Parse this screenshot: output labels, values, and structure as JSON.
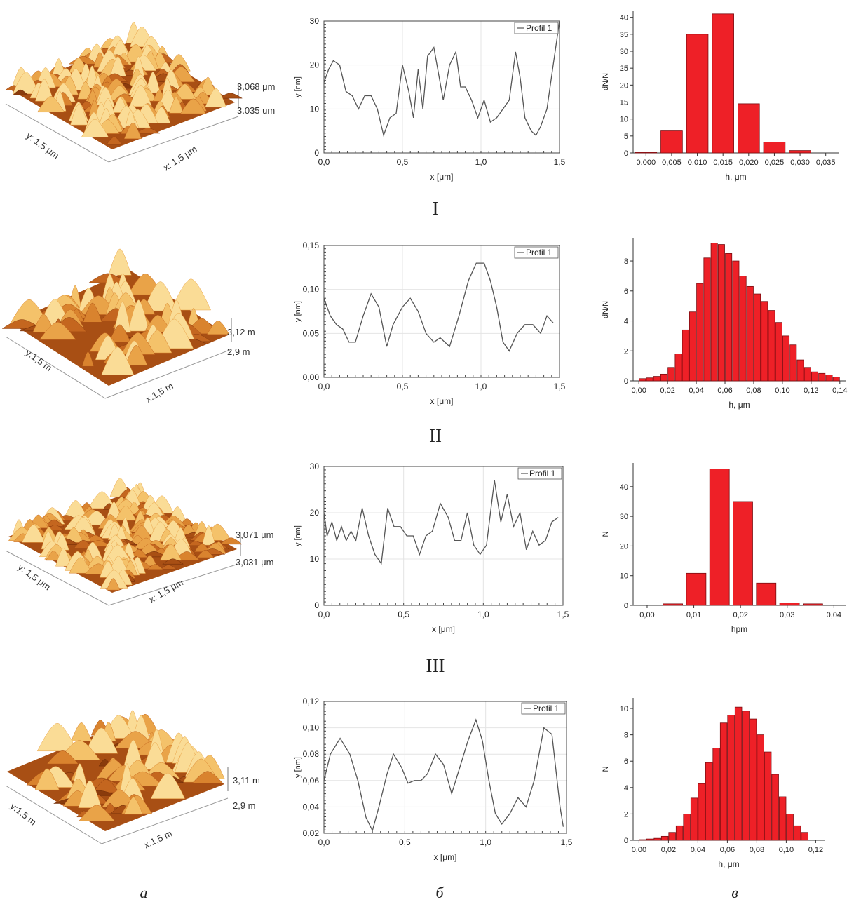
{
  "row_labels": [
    "I",
    "II",
    "III"
  ],
  "column_labels": [
    "а",
    "б",
    "в"
  ],
  "surfaces": [
    {
      "x_label": "x: 1,5 μm",
      "y_label": "y: 1,5 μm",
      "z_top": "3,068 μm",
      "z_bottom": "3.035 um"
    },
    {
      "x_label": "x:1,5 m",
      "y_label": "y:1,5 m",
      "z_top": "3,12 m",
      "z_bottom": "2,9 m"
    },
    {
      "x_label": "x: 1,5 μm",
      "y_label": "y: 1,5 μm",
      "z_top": "3,071 μm",
      "z_bottom": "3,031 μm"
    },
    {
      "x_label": "x:1,5 m",
      "y_label": "y:1,5 m",
      "z_top": "3,11 m",
      "z_bottom": "2,9 m"
    }
  ],
  "colors": {
    "bar_fill": "#ee2027",
    "bar_stroke": "#7a0c10",
    "line": "#555555",
    "grid": "#e4e4e4"
  },
  "chart_data": [
    {
      "type": "line",
      "legend": "Profil 1",
      "xlabel": "x [μm]",
      "ylabel": "y [nm]",
      "xlim": [
        0,
        1.5
      ],
      "ylim": [
        0,
        30
      ],
      "x_ticks": [
        0,
        0.5,
        1.0,
        1.5
      ],
      "x_tick_labels": [
        "0,0",
        "0,5",
        "1,0",
        "1,5"
      ],
      "y_ticks": [
        0,
        10,
        20,
        30
      ],
      "y_tick_labels": [
        "0",
        "10",
        "20",
        "30"
      ],
      "x": [
        0,
        0.03,
        0.06,
        0.1,
        0.14,
        0.18,
        0.22,
        0.26,
        0.3,
        0.34,
        0.38,
        0.42,
        0.46,
        0.5,
        0.54,
        0.57,
        0.6,
        0.63,
        0.66,
        0.7,
        0.73,
        0.76,
        0.8,
        0.84,
        0.87,
        0.9,
        0.94,
        0.98,
        1.02,
        1.06,
        1.1,
        1.14,
        1.18,
        1.22,
        1.25,
        1.28,
        1.32,
        1.35,
        1.38,
        1.42,
        1.46,
        1.5
      ],
      "y": [
        16,
        19,
        21,
        20,
        14,
        13,
        10,
        13,
        13,
        10,
        4,
        8,
        9,
        20,
        14,
        8,
        19,
        10,
        22,
        24,
        18,
        12,
        20,
        23,
        15,
        15,
        12,
        8,
        12,
        7,
        8,
        10,
        12,
        23,
        17,
        8,
        5,
        4,
        6,
        10,
        20,
        30
      ]
    },
    {
      "type": "bar",
      "xlabel": "h, μm",
      "ylabel": "dN/N",
      "xlim": [
        -0.0025,
        0.0375
      ],
      "ylim": [
        0,
        42
      ],
      "bar_width": 0.0042,
      "x_ticks": [
        0,
        0.005,
        0.01,
        0.015,
        0.02,
        0.025,
        0.03,
        0.035
      ],
      "x_tick_labels": [
        "0,000",
        "0,005",
        "0,010",
        "0,015",
        "0,020",
        "0,025",
        "0,030",
        "0,035"
      ],
      "y_ticks": [
        0,
        5,
        10,
        15,
        20,
        25,
        30,
        35,
        40
      ],
      "y_tick_labels": [
        "0",
        "5",
        "10",
        "15",
        "20",
        "25",
        "30",
        "35",
        "40"
      ],
      "x": [
        0,
        0.005,
        0.01,
        0.015,
        0.02,
        0.025,
        0.03
      ],
      "values": [
        0.2,
        6.5,
        35,
        41,
        14.5,
        3.2,
        0.7
      ]
    },
    {
      "type": "line",
      "legend": "Profil 1",
      "xlabel": "x [μm]",
      "ylabel": "y [nm]",
      "xlim": [
        0,
        1.5
      ],
      "ylim": [
        0,
        0.15
      ],
      "x_ticks": [
        0,
        0.5,
        1.0,
        1.5
      ],
      "x_tick_labels": [
        "0,0",
        "0,5",
        "1,0",
        "1,5"
      ],
      "y_ticks": [
        0,
        0.05,
        0.1,
        0.15
      ],
      "y_tick_labels": [
        "0,00",
        "0,05",
        "0,10",
        "0,15"
      ],
      "x": [
        0,
        0.04,
        0.08,
        0.12,
        0.16,
        0.2,
        0.25,
        0.3,
        0.35,
        0.4,
        0.44,
        0.5,
        0.55,
        0.6,
        0.65,
        0.7,
        0.74,
        0.8,
        0.86,
        0.92,
        0.97,
        1.02,
        1.06,
        1.1,
        1.14,
        1.18,
        1.23,
        1.28,
        1.33,
        1.38,
        1.42,
        1.46
      ],
      "y": [
        0.09,
        0.07,
        0.06,
        0.055,
        0.04,
        0.04,
        0.07,
        0.095,
        0.08,
        0.035,
        0.06,
        0.08,
        0.09,
        0.075,
        0.05,
        0.04,
        0.045,
        0.035,
        0.07,
        0.11,
        0.13,
        0.13,
        0.11,
        0.08,
        0.04,
        0.03,
        0.05,
        0.06,
        0.06,
        0.05,
        0.07,
        0.062
      ]
    },
    {
      "type": "bar",
      "xlabel": "h, μm",
      "ylabel": "dN/N",
      "xlim": [
        -0.004,
        0.144
      ],
      "ylim": [
        0,
        9.5
      ],
      "bar_width": 0.0045,
      "x_ticks": [
        0,
        0.02,
        0.04,
        0.06,
        0.08,
        0.1,
        0.12,
        0.14
      ],
      "x_tick_labels": [
        "0,00",
        "0,02",
        "0,04",
        "0,06",
        "0,08",
        "0,10",
        "0,12",
        "0,14"
      ],
      "y_ticks": [
        0,
        2,
        4,
        6,
        8
      ],
      "y_tick_labels": [
        "0",
        "2",
        "4",
        "6",
        "8"
      ],
      "x": [
        0.0025,
        0.0075,
        0.0125,
        0.0175,
        0.0225,
        0.0275,
        0.0325,
        0.0375,
        0.0425,
        0.0475,
        0.0525,
        0.0575,
        0.0625,
        0.0675,
        0.0725,
        0.0775,
        0.0825,
        0.0875,
        0.0925,
        0.0975,
        0.1025,
        0.1075,
        0.1125,
        0.1175,
        0.1225,
        0.1275,
        0.1325,
        0.1375
      ],
      "values": [
        0.15,
        0.2,
        0.3,
        0.45,
        0.9,
        1.8,
        3.4,
        4.6,
        6.5,
        8.2,
        9.2,
        9.1,
        8.5,
        8.0,
        7.0,
        6.3,
        5.8,
        5.3,
        4.7,
        3.9,
        3.0,
        2.4,
        1.4,
        0.9,
        0.6,
        0.5,
        0.4,
        0.25
      ]
    },
    {
      "type": "line",
      "legend": "Profil 1",
      "xlabel": "x [μm]",
      "ylabel": "y [nm]",
      "xlim": [
        0,
        1.5
      ],
      "ylim": [
        0,
        30
      ],
      "x_ticks": [
        0,
        0.5,
        1.0,
        1.5
      ],
      "x_tick_labels": [
        "0,0",
        "0,5",
        "1,0",
        "1,5"
      ],
      "y_ticks": [
        0,
        10,
        20,
        30
      ],
      "y_tick_labels": [
        "0",
        "10",
        "20",
        "30"
      ],
      "x": [
        0,
        0.02,
        0.05,
        0.08,
        0.11,
        0.14,
        0.17,
        0.2,
        0.24,
        0.28,
        0.32,
        0.36,
        0.4,
        0.44,
        0.48,
        0.52,
        0.56,
        0.6,
        0.64,
        0.68,
        0.73,
        0.78,
        0.82,
        0.86,
        0.9,
        0.94,
        0.98,
        1.02,
        1.07,
        1.11,
        1.15,
        1.19,
        1.23,
        1.27,
        1.31,
        1.35,
        1.39,
        1.43,
        1.47
      ],
      "y": [
        20,
        15,
        18,
        14,
        17,
        14,
        16,
        14,
        21,
        15,
        11,
        9,
        21,
        17,
        17,
        15,
        15,
        11,
        15,
        16,
        22,
        19,
        14,
        14,
        20,
        13,
        11,
        13,
        27,
        18,
        24,
        17,
        20,
        12,
        16,
        13,
        14,
        18,
        19
      ]
    },
    {
      "type": "bar",
      "xlabel": "hpm",
      "ylabel": "N",
      "xlim": [
        -0.003,
        0.0425
      ],
      "ylim": [
        0,
        48
      ],
      "bar_width": 0.0042,
      "x_ticks": [
        0,
        0.01,
        0.02,
        0.03,
        0.04
      ],
      "x_tick_labels": [
        "0,00",
        "0,01",
        "0,02",
        "0,03",
        "0,04"
      ],
      "y_ticks": [
        0,
        10,
        20,
        30,
        40
      ],
      "y_tick_labels": [
        "0",
        "10",
        "20",
        "30",
        "40"
      ],
      "x": [
        0.0055,
        0.0105,
        0.0155,
        0.0205,
        0.0255,
        0.0305,
        0.0355
      ],
      "values": [
        0.5,
        10.8,
        46,
        35,
        7.5,
        0.8,
        0.5
      ]
    },
    {
      "type": "line",
      "legend": "Profil 1",
      "xlabel": "x [μm]",
      "ylabel": "y [nm]",
      "xlim": [
        0,
        1.5
      ],
      "ylim": [
        0.02,
        0.12
      ],
      "x_ticks": [
        0,
        0.5,
        1.0,
        1.5
      ],
      "x_tick_labels": [
        "0,0",
        "0,5",
        "1,0",
        "1,5"
      ],
      "y_ticks": [
        0.02,
        0.04,
        0.06,
        0.08,
        0.1,
        0.12
      ],
      "y_tick_labels": [
        "0,02",
        "0,04",
        "0,06",
        "0,08",
        "0,10",
        "0,12"
      ],
      "x": [
        0,
        0.04,
        0.1,
        0.16,
        0.21,
        0.26,
        0.3,
        0.34,
        0.39,
        0.43,
        0.48,
        0.52,
        0.56,
        0.6,
        0.64,
        0.69,
        0.74,
        0.79,
        0.84,
        0.89,
        0.94,
        0.98,
        1.02,
        1.06,
        1.1,
        1.15,
        1.2,
        1.25,
        1.3,
        1.36,
        1.41,
        1.46,
        1.48
      ],
      "y": [
        0.06,
        0.08,
        0.092,
        0.08,
        0.06,
        0.032,
        0.022,
        0.04,
        0.065,
        0.08,
        0.07,
        0.058,
        0.06,
        0.06,
        0.065,
        0.08,
        0.072,
        0.05,
        0.07,
        0.09,
        0.106,
        0.09,
        0.06,
        0.035,
        0.027,
        0.035,
        0.047,
        0.04,
        0.06,
        0.1,
        0.095,
        0.04,
        0.025
      ]
    },
    {
      "type": "bar",
      "xlabel": "h, μm",
      "ylabel": "N",
      "xlim": [
        -0.004,
        0.126
      ],
      "ylim": [
        0,
        10.8
      ],
      "bar_width": 0.0046,
      "x_ticks": [
        0,
        0.02,
        0.04,
        0.06,
        0.08,
        0.1,
        0.12
      ],
      "x_tick_labels": [
        "0,00",
        "0,02",
        "0,04",
        "0,06",
        "0,08",
        "0,10",
        "0,12"
      ],
      "y_ticks": [
        0,
        2,
        4,
        6,
        8,
        10
      ],
      "y_tick_labels": [
        "0",
        "2",
        "4",
        "6",
        "8",
        "10"
      ],
      "x": [
        0.0025,
        0.0075,
        0.0125,
        0.0175,
        0.0225,
        0.0275,
        0.0325,
        0.0375,
        0.0425,
        0.0475,
        0.0525,
        0.0575,
        0.0625,
        0.0675,
        0.0725,
        0.0775,
        0.0825,
        0.0875,
        0.0925,
        0.0975,
        0.1025,
        0.1075,
        0.1125
      ],
      "values": [
        0.05,
        0.1,
        0.15,
        0.3,
        0.6,
        1.1,
        2.0,
        3.2,
        4.3,
        5.9,
        7.0,
        8.9,
        9.5,
        10.1,
        9.8,
        9.2,
        8.0,
        6.7,
        5.0,
        3.3,
        2.0,
        1.1,
        0.6
      ]
    }
  ]
}
